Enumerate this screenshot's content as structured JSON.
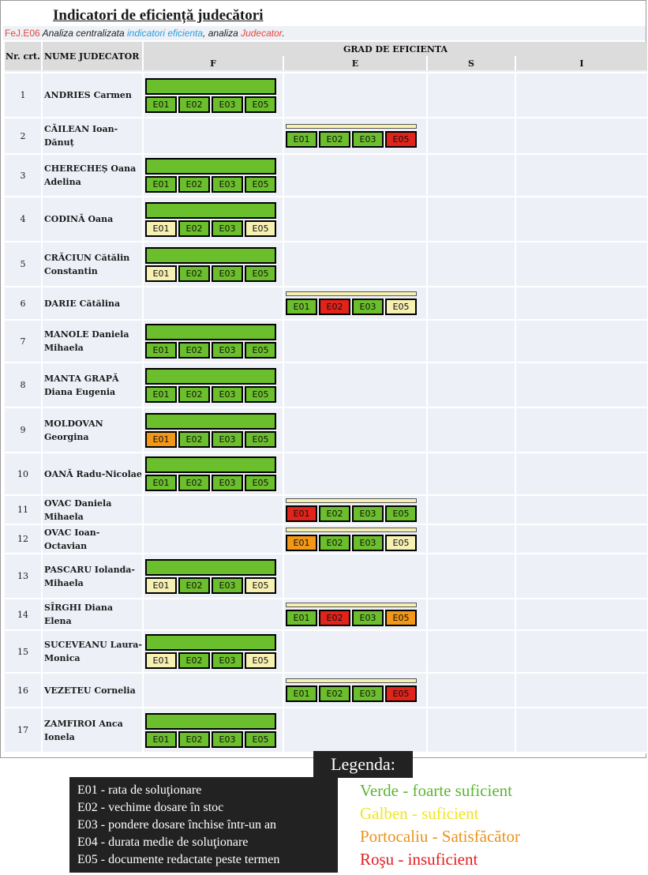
{
  "header": {
    "title": "Indicatori de eficiență judecători",
    "sub_code": "FeJ.E06",
    "sub_text1": " Analiza centralizata ",
    "sub_link1": "indicatori eficienta",
    "sub_text2": ", analiza ",
    "sub_link2": "Judecator",
    "sub_text3": "."
  },
  "table": {
    "col_nr": "Nr. crt.",
    "col_name": "NUME JUDECATOR",
    "col_grade": "GRAD DE EFICIENTA",
    "grades": [
      "F",
      "E",
      "S",
      "I"
    ],
    "rows": [
      {
        "nr": "1",
        "name": "ANDRIES Carmen",
        "grade": "F",
        "codes": [
          "E01",
          "E02",
          "E03",
          "E05"
        ],
        "colors": [
          "g",
          "g",
          "g",
          "g"
        ]
      },
      {
        "nr": "2",
        "name": "CĂILEAN Ioan-Dănuț",
        "grade": "E",
        "codes": [
          "E01",
          "E02",
          "E03",
          "E05"
        ],
        "colors": [
          "g",
          "g",
          "g",
          "r"
        ]
      },
      {
        "nr": "3",
        "name": "CHERECHEȘ Oana Adelina",
        "grade": "F",
        "codes": [
          "E01",
          "E02",
          "E03",
          "E05"
        ],
        "colors": [
          "g",
          "g",
          "g",
          "g"
        ]
      },
      {
        "nr": "4",
        "name": "CODINĂ Oana",
        "grade": "F",
        "codes": [
          "E01",
          "E02",
          "E03",
          "E05"
        ],
        "colors": [
          "y",
          "g",
          "g",
          "y"
        ]
      },
      {
        "nr": "5",
        "name": "CRĂCIUN Cătălin Constantin",
        "grade": "F",
        "codes": [
          "E01",
          "E02",
          "E03",
          "E05"
        ],
        "colors": [
          "y",
          "g",
          "g",
          "g"
        ]
      },
      {
        "nr": "6",
        "name": "DARIE Cătălina",
        "grade": "E",
        "codes": [
          "E01",
          "E02",
          "E03",
          "E05"
        ],
        "colors": [
          "g",
          "r",
          "g",
          "y"
        ]
      },
      {
        "nr": "7",
        "name": "MANOLE Daniela Mihaela",
        "grade": "F",
        "codes": [
          "E01",
          "E02",
          "E03",
          "E05"
        ],
        "colors": [
          "g",
          "g",
          "g",
          "g"
        ]
      },
      {
        "nr": "8",
        "name": "MANTA GRAPĂ Diana Eugenia",
        "grade": "F",
        "codes": [
          "E01",
          "E02",
          "E03",
          "E05"
        ],
        "colors": [
          "g",
          "g",
          "g",
          "g"
        ]
      },
      {
        "nr": "9",
        "name": "MOLDOVAN Georgina",
        "grade": "F",
        "codes": [
          "E01",
          "E02",
          "E03",
          "E05"
        ],
        "colors": [
          "o",
          "g",
          "g",
          "g"
        ]
      },
      {
        "nr": "10",
        "name": "OANĂ Radu-Nicolae",
        "grade": "F",
        "codes": [
          "E01",
          "E02",
          "E03",
          "E05"
        ],
        "colors": [
          "g",
          "g",
          "g",
          "g"
        ]
      },
      {
        "nr": "11",
        "name": "OVAC Daniela Mihaela",
        "grade": "E",
        "codes": [
          "E01",
          "E02",
          "E03",
          "E05"
        ],
        "colors": [
          "r",
          "g",
          "g",
          "g"
        ]
      },
      {
        "nr": "12",
        "name": "OVAC Ioan-Octavian",
        "grade": "E",
        "codes": [
          "E01",
          "E02",
          "E03",
          "E05"
        ],
        "colors": [
          "o",
          "g",
          "g",
          "y"
        ]
      },
      {
        "nr": "13",
        "name": "PASCARU Iolanda-Mihaela",
        "grade": "F",
        "codes": [
          "E01",
          "E02",
          "E03",
          "E05"
        ],
        "colors": [
          "y",
          "g",
          "g",
          "y"
        ]
      },
      {
        "nr": "14",
        "name": "SÎRGHI Diana Elena",
        "grade": "E",
        "codes": [
          "E01",
          "E02",
          "E03",
          "E05"
        ],
        "colors": [
          "g",
          "r",
          "g",
          "o"
        ]
      },
      {
        "nr": "15",
        "name": "SUCEVEANU Laura-Monica",
        "grade": "F",
        "codes": [
          "E01",
          "E02",
          "E03",
          "E05"
        ],
        "colors": [
          "y",
          "g",
          "g",
          "y"
        ]
      },
      {
        "nr": "16",
        "name": "VEZETEU Cornelia",
        "grade": "E",
        "codes": [
          "E01",
          "E02",
          "E03",
          "E05"
        ],
        "colors": [
          "g",
          "g",
          "g",
          "r"
        ]
      },
      {
        "nr": "17",
        "name": "ZAMFIROI Anca Ionela",
        "grade": "F",
        "codes": [
          "E01",
          "E02",
          "E03",
          "E05"
        ],
        "colors": [
          "g",
          "g",
          "g",
          "g"
        ]
      }
    ]
  },
  "legend": {
    "title": "Legenda:",
    "items": [
      "E01 - rata de soluţionare",
      "E02 - vechime dosare în stoc",
      "E03 - pondere dosare închise într-un an",
      "E04 - durata medie de soluţionare",
      "E05 - documente redactate peste termen"
    ],
    "colors": [
      {
        "label": "Verde - foarte suficient",
        "hex": "#5cb531"
      },
      {
        "label": "Galben - suficient",
        "hex": "#f0e61e"
      },
      {
        "label": "Portocaliu - Satisfăcător",
        "hex": "#e8931e"
      },
      {
        "label": "Roşu - insuficient",
        "hex": "#e02020"
      }
    ]
  },
  "colors": {
    "g": "#6cbf2c",
    "y": "#f7f0b3",
    "o": "#f29716",
    "r": "#e2231a"
  }
}
